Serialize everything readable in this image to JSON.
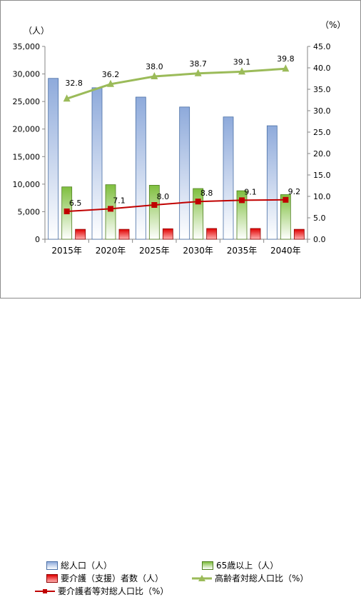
{
  "chart_data": {
    "type": "bar",
    "categories": [
      "2015年",
      "2020年",
      "2025年",
      "2030年",
      "2035年",
      "2040年"
    ],
    "left_axis": {
      "unit": "（人）",
      "ticks": [
        "0",
        "5,000",
        "10,000",
        "15,000",
        "20,000",
        "25,000",
        "30,000",
        "35,000"
      ],
      "ylim": [
        0,
        35000
      ]
    },
    "right_axis": {
      "unit": "（%）",
      "ticks": [
        "0.0",
        "5.0",
        "10.0",
        "15.0",
        "20.0",
        "25.0",
        "30.0",
        "35.0",
        "40.0",
        "45.0"
      ],
      "ylim": [
        0,
        45
      ]
    },
    "series": [
      {
        "name": "総人口（人）",
        "kind": "bar",
        "axis": "left",
        "values": [
          29200,
          27500,
          25800,
          24000,
          22200,
          20600
        ],
        "color": "#95b3d7"
      },
      {
        "name": "65歳以上（人）",
        "kind": "bar",
        "axis": "left",
        "values": [
          9500,
          9900,
          9800,
          9200,
          8800,
          8100
        ],
        "color": "#92d050"
      },
      {
        "name": "要介護（支援）者数（人）",
        "kind": "bar",
        "axis": "left",
        "values": [
          1800,
          1800,
          1900,
          1950,
          1950,
          1800
        ],
        "color": "#e60000"
      },
      {
        "name": "高齢者対総人口比（%）",
        "kind": "line",
        "axis": "right",
        "values": [
          32.8,
          36.2,
          38.0,
          38.7,
          39.1,
          39.8
        ],
        "labels": [
          "32.8",
          "36.2",
          "38.0",
          "38.7",
          "39.1",
          "39.8"
        ],
        "color": "#9bbb59"
      },
      {
        "name": "要介護者等対総人口比（%）",
        "kind": "line",
        "axis": "right",
        "values": [
          6.5,
          7.1,
          8.0,
          8.8,
          9.1,
          9.2
        ],
        "labels": [
          "6.5",
          "7.1",
          "8.0",
          "8.8",
          "9.1",
          "9.2"
        ],
        "color": "#c00000"
      }
    ],
    "grid": false,
    "legend_position": "bottom"
  }
}
